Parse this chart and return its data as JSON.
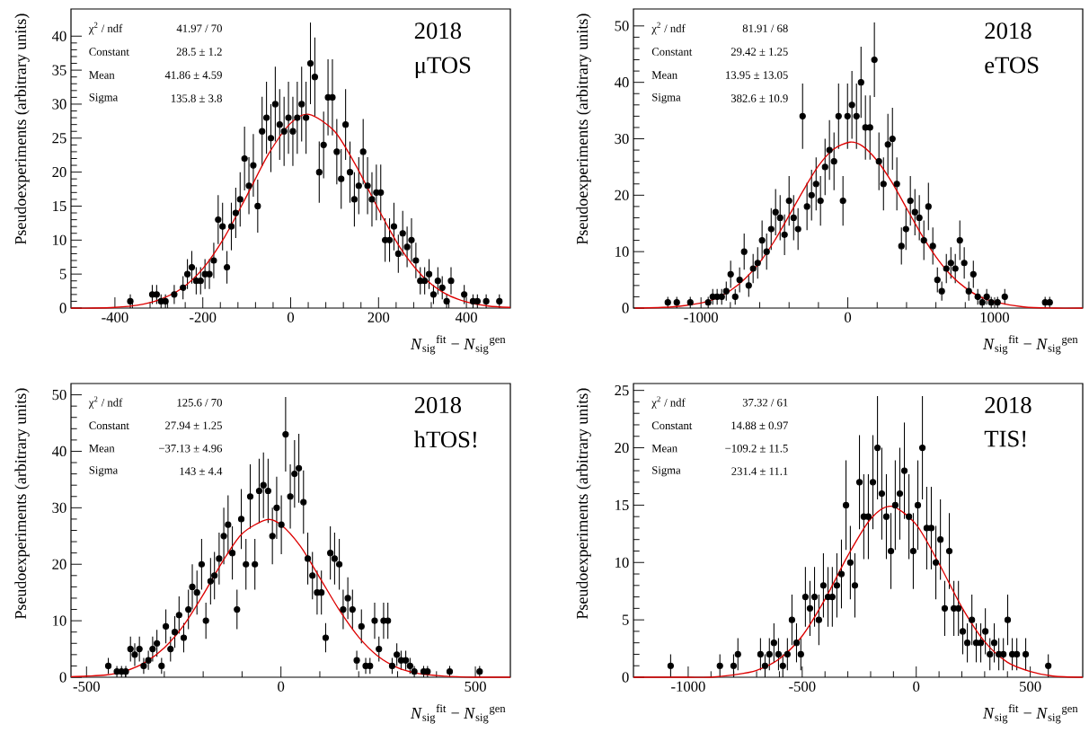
{
  "chart_data": [
    {
      "type": "scatter",
      "xlabel": "*N*$_{sig}$$^{fit}$ − *N*$_{sig}$$^{gen}$",
      "ylabel": "Pseudoexperiments (arbitrary units)",
      "xlim": [
        -500,
        500
      ],
      "ylim": [
        0,
        44
      ],
      "xticks": [
        -400,
        -200,
        0,
        200,
        400
      ],
      "yticks": [
        0,
        5,
        10,
        15,
        20,
        25,
        30,
        35,
        40
      ],
      "annotations": [
        "χ$^{2}$ / ndf",
        "41.97 / 70",
        "Constant",
        "28.5 ± 1.2",
        "Mean",
        "41.86 ± 4.59",
        "Sigma",
        "135.8 ± 3.8",
        "2018",
        "μTOS"
      ],
      "series": [
        {
          "marker": "circle",
          "color": "#000000",
          "x": [
            -365,
            -315,
            -305,
            -295,
            -285,
            -265,
            -245,
            -235,
            -225,
            -215,
            -205,
            -195,
            -185,
            -175,
            -165,
            -155,
            -145,
            -135,
            -125,
            -115,
            -105,
            -95,
            -85,
            -75,
            -65,
            -55,
            -45,
            -35,
            -25,
            -15,
            -5,
            5,
            15,
            25,
            35,
            45,
            55,
            65,
            75,
            85,
            95,
            105,
            115,
            125,
            135,
            145,
            155,
            165,
            175,
            185,
            195,
            205,
            215,
            225,
            235,
            245,
            255,
            265,
            275,
            285,
            295,
            305,
            315,
            325,
            335,
            345,
            355,
            365,
            395,
            415,
            425,
            445,
            475
          ],
          "values": [
            1,
            2,
            2,
            1,
            1,
            2,
            3,
            5,
            6,
            4,
            4,
            5,
            5,
            7,
            13,
            12,
            6,
            12,
            14,
            16,
            22,
            18,
            21,
            15,
            26,
            28,
            25,
            30,
            27,
            26,
            28,
            26,
            28,
            30,
            28,
            36,
            34,
            20,
            24,
            31,
            31,
            23,
            19,
            27,
            20,
            16,
            18,
            23,
            18,
            16,
            17,
            17,
            10,
            10,
            12,
            8,
            11,
            9,
            10,
            7,
            4,
            4,
            5,
            2,
            4,
            3,
            1,
            4,
            2,
            1,
            1,
            1,
            1
          ],
          "errors": [
            1,
            1.4,
            1.4,
            1,
            1,
            1.4,
            1.7,
            2.2,
            2.4,
            2,
            2,
            2.2,
            2.2,
            2.6,
            3.6,
            3.5,
            2.4,
            3.5,
            3.7,
            4,
            4.7,
            4.2,
            4.6,
            3.9,
            5.1,
            5.3,
            5,
            5.5,
            5.2,
            5.1,
            5.3,
            5.1,
            5.3,
            5.5,
            5.3,
            6,
            5.8,
            4.5,
            4.9,
            5.6,
            5.6,
            4.8,
            4.4,
            5.2,
            4.5,
            4,
            4.2,
            4.8,
            4.2,
            4,
            4.1,
            4.1,
            3.2,
            3.2,
            3.5,
            2.8,
            3.3,
            3,
            3.2,
            2.6,
            2,
            2,
            2.2,
            1.4,
            2,
            1.7,
            1,
            2,
            1.4,
            1,
            1,
            1,
            1
          ]
        },
        {
          "type": "line",
          "marker": "none",
          "color": "#dd0000",
          "x": [
            -500,
            -450,
            -400,
            -350,
            -300,
            -250,
            -200,
            -150,
            -100,
            -50,
            0,
            41.86,
            100,
            150,
            200,
            250,
            300,
            350,
            400,
            450,
            500
          ],
          "values": [
            0,
            0,
            0.1,
            0.4,
            1.2,
            2.8,
            5.8,
            10.5,
            16.5,
            22.7,
            27.2,
            28.5,
            26,
            20.8,
            14.5,
            8.8,
            4.7,
            2.2,
            0.9,
            0.3,
            0.1
          ]
        }
      ]
    },
    {
      "type": "scatter",
      "xlabel": "*N*$_{sig}$$^{fit}$ − *N*$_{sig}$$^{gen}$",
      "ylabel": "Pseudoexperiments (arbitrary units)",
      "xlim": [
        -1460,
        1600
      ],
      "ylim": [
        0,
        53
      ],
      "xticks": [
        -1000,
        0,
        1000
      ],
      "yticks": [
        0,
        10,
        20,
        30,
        40,
        50
      ],
      "annotations": [
        "χ$^{2}$ / ndf",
        "81.91 / 68",
        "Constant",
        "29.42 ± 1.25",
        "Mean",
        "13.95 ± 13.05",
        "Sigma",
        "382.6 ± 10.9",
        "2018",
        "eTOS"
      ],
      "series": [
        {
          "marker": "circle",
          "color": "#000000",
          "x": [
            -1226,
            -1165,
            -1073,
            -951,
            -920,
            -890,
            -859,
            -828,
            -798,
            -767,
            -737,
            -706,
            -675,
            -645,
            -614,
            -584,
            -553,
            -522,
            -492,
            -461,
            -431,
            -400,
            -369,
            -339,
            -308,
            -278,
            -247,
            -216,
            -186,
            -155,
            -125,
            -94,
            -63,
            -33,
            -2,
            28,
            59,
            90,
            120,
            151,
            181,
            212,
            243,
            273,
            304,
            334,
            365,
            396,
            426,
            457,
            487,
            518,
            549,
            579,
            610,
            640,
            671,
            702,
            732,
            763,
            793,
            824,
            855,
            885,
            916,
            946,
            977,
            1020,
            1069,
            1344,
            1375
          ],
          "values": [
            1,
            1,
            1,
            1,
            2,
            2,
            2,
            3,
            6,
            2,
            5,
            10,
            4,
            7,
            8,
            12,
            10,
            14,
            17,
            16,
            13,
            19,
            16,
            14,
            34,
            18,
            20,
            22,
            19,
            25,
            28,
            26,
            34,
            19,
            34,
            36,
            34,
            40,
            32,
            32,
            44,
            26,
            22,
            29,
            30,
            22,
            11,
            14,
            19,
            17,
            16,
            12,
            18,
            11,
            5,
            3,
            7,
            8,
            7,
            12,
            8,
            3,
            6,
            2,
            1,
            2,
            1,
            1,
            2,
            1,
            1
          ],
          "errors": [
            1,
            1,
            1,
            1,
            1.4,
            1.4,
            1.4,
            1.7,
            2.4,
            1.4,
            2.2,
            3.2,
            2,
            2.6,
            2.8,
            3.5,
            3.2,
            3.7,
            4.1,
            4,
            3.6,
            4.4,
            4,
            3.7,
            5.8,
            4.2,
            4.5,
            4.7,
            4.4,
            5,
            5.3,
            5.1,
            5.8,
            4.4,
            5.8,
            6,
            5.8,
            6.3,
            5.7,
            5.7,
            6.6,
            5.1,
            4.7,
            5.4,
            5.5,
            4.7,
            3.3,
            3.7,
            4.4,
            4.1,
            4,
            3.5,
            4.2,
            3.3,
            2.2,
            1.7,
            2.6,
            2.8,
            2.6,
            3.5,
            2.8,
            1.7,
            2.4,
            1.4,
            1,
            1.4,
            1,
            1,
            1.4,
            1,
            1
          ]
        },
        {
          "type": "line",
          "marker": "none",
          "color": "#dd0000",
          "x": [
            -1450,
            -1200,
            -1000,
            -900,
            -800,
            -700,
            -600,
            -500,
            -400,
            -300,
            -200,
            -100,
            13.95,
            100,
            200,
            300,
            400,
            500,
            600,
            700,
            800,
            900,
            1000,
            1200,
            1400,
            1600
          ],
          "values": [
            0,
            0.2,
            0.9,
            1.7,
            3.1,
            5.2,
            8.1,
            11.9,
            16.4,
            21,
            25.2,
            28.1,
            29.4,
            28.7,
            26.1,
            22.3,
            17.7,
            13.1,
            9.1,
            5.9,
            3.6,
            2,
            1.1,
            0.2,
            0,
            0
          ]
        }
      ]
    },
    {
      "type": "scatter",
      "xlabel": "*N*$_{sig}$$^{fit}$ − *N*$_{sig}$$^{gen}$",
      "ylabel": "Pseudoexperiments (arbitrary units)",
      "xlim": [
        -540,
        590
      ],
      "ylim": [
        0,
        52
      ],
      "xticks": [
        -500,
        0,
        500
      ],
      "yticks": [
        0,
        10,
        20,
        30,
        40,
        50
      ],
      "annotations": [
        "χ$^{2}$ / ndf",
        "125.6 / 70",
        "Constant",
        "27.94 ± 1.25",
        "Mean",
        "−37.13 ± 4.96",
        "Sigma",
        "143 ± 4.4",
        "2018",
        "hTOS!"
      ],
      "series": [
        {
          "marker": "circle",
          "color": "#000000",
          "x": [
            -444,
            -422,
            -410,
            -399,
            -387,
            -376,
            -364,
            -353,
            -341,
            -330,
            -319,
            -307,
            -296,
            -284,
            -273,
            -262,
            -250,
            -238,
            -228,
            -216,
            -204,
            -193,
            -181,
            -171,
            -159,
            -147,
            -136,
            -125,
            -113,
            -102,
            -90,
            -79,
            -67,
            -56,
            -45,
            -33,
            -22,
            -11,
            1,
            12,
            24,
            35,
            46,
            58,
            69,
            81,
            93,
            104,
            115,
            127,
            138,
            150,
            160,
            172,
            184,
            195,
            207,
            218,
            229,
            241,
            252,
            264,
            275,
            286,
            298,
            309,
            321,
            332,
            343,
            367,
            377,
            434,
            511
          ],
          "values": [
            2,
            1,
            1,
            1,
            5,
            4,
            5,
            2,
            3,
            5,
            6,
            2,
            9,
            5,
            8,
            11,
            7,
            12,
            16,
            15,
            20,
            10,
            17,
            18,
            21,
            25,
            27,
            22,
            12,
            28,
            20,
            32,
            20,
            33,
            34,
            33,
            25,
            30,
            27,
            43,
            32,
            36,
            37,
            31,
            21,
            18,
            15,
            15,
            7,
            22,
            21,
            20,
            12,
            14,
            12,
            3,
            9,
            2,
            2,
            10,
            5,
            10,
            10,
            2,
            4,
            3,
            3,
            2,
            1,
            1,
            1,
            1,
            1
          ],
          "errors": [
            1.4,
            1,
            1,
            1,
            2.2,
            2,
            2.2,
            1.4,
            1.7,
            2.2,
            2.4,
            1.4,
            3,
            2.2,
            2.8,
            3.3,
            2.6,
            3.5,
            4,
            3.9,
            4.5,
            3.2,
            4.1,
            4.2,
            4.6,
            5,
            5.2,
            4.7,
            3.5,
            5.3,
            4.5,
            5.7,
            4.5,
            5.7,
            5.8,
            5.7,
            5,
            5.5,
            5.2,
            6.6,
            5.7,
            6,
            6.1,
            5.6,
            4.6,
            4.2,
            3.9,
            3.9,
            2.6,
            4.7,
            4.6,
            4.5,
            3.5,
            3.7,
            3.5,
            1.7,
            3,
            1.4,
            1.4,
            3.2,
            2.2,
            3.2,
            3.2,
            1.4,
            2,
            1.7,
            1.7,
            1.4,
            1,
            1,
            1,
            1,
            1
          ]
        },
        {
          "type": "line",
          "marker": "none",
          "color": "#dd0000",
          "x": [
            -540,
            -500,
            -450,
            -400,
            -350,
            -300,
            -250,
            -200,
            -150,
            -100,
            -37.13,
            0,
            50,
            100,
            150,
            200,
            250,
            300,
            350,
            400,
            450,
            500,
            590
          ],
          "values": [
            0.1,
            0.2,
            0.4,
            1.1,
            2.6,
            5.2,
            9.2,
            14.6,
            20.5,
            25.4,
            27.9,
            27,
            23.2,
            17.6,
            11.9,
            7.1,
            3.7,
            1.7,
            0.7,
            0.3,
            0.1,
            0,
            0
          ]
        }
      ]
    },
    {
      "type": "scatter",
      "xlabel": "*N*$_{sig}$$^{fit}$ − *N*$_{sig}$$^{gen}$",
      "ylabel": "Pseudoexperiments (arbitrary units)",
      "xlim": [
        -1240,
        730
      ],
      "ylim": [
        0,
        25.6
      ],
      "xticks": [
        -1000,
        -500,
        0,
        500
      ],
      "yticks": [
        0,
        5,
        10,
        15,
        20,
        25
      ],
      "annotations": [
        "χ$^{2}$ / ndf",
        "37.32 / 61",
        "Constant",
        "14.88 ± 0.97",
        "Mean",
        "−109.2 ± 11.5",
        "Sigma",
        "231.4 ± 11.1",
        "2018",
        "TIS!"
      ],
      "series": [
        {
          "marker": "circle",
          "color": "#000000",
          "x": [
            -1077,
            -861,
            -801,
            -782,
            -683,
            -663,
            -644,
            -624,
            -604,
            -585,
            -565,
            -545,
            -525,
            -506,
            -486,
            -466,
            -446,
            -427,
            -407,
            -387,
            -368,
            -348,
            -328,
            -308,
            -289,
            -269,
            -249,
            -230,
            -210,
            -190,
            -170,
            -151,
            -131,
            -111,
            -92,
            -72,
            -52,
            -32,
            -13,
            7,
            27,
            46,
            66,
            86,
            106,
            125,
            145,
            165,
            185,
            204,
            224,
            244,
            263,
            283,
            303,
            323,
            342,
            362,
            382,
            401,
            421,
            441,
            480,
            579
          ],
          "values": [
            1,
            1,
            1,
            2,
            2,
            1,
            2,
            3,
            2,
            1,
            2,
            5,
            3,
            2,
            7,
            6,
            7,
            5,
            8,
            7,
            7,
            8,
            9,
            15,
            10,
            8,
            17,
            14,
            14,
            17,
            20,
            16,
            14,
            11,
            15,
            16,
            18,
            14,
            11,
            15,
            20,
            13,
            13,
            10,
            12,
            6,
            11,
            6,
            6,
            4,
            3,
            5,
            3,
            3,
            4,
            2,
            3,
            2,
            2,
            5,
            2,
            2,
            2,
            1
          ],
          "errors": [
            1,
            1,
            1,
            1.4,
            1.4,
            1,
            1.4,
            1.7,
            1.4,
            1,
            1.4,
            2.2,
            1.7,
            1.4,
            2.6,
            2.4,
            2.6,
            2.2,
            2.8,
            2.6,
            2.6,
            2.8,
            3,
            3.9,
            3.2,
            2.8,
            4.1,
            3.7,
            3.7,
            4.1,
            4.5,
            4,
            3.7,
            3.3,
            3.9,
            4,
            4.2,
            3.7,
            3.3,
            3.9,
            4.5,
            3.6,
            3.6,
            3.2,
            3.5,
            2.4,
            3.3,
            2.4,
            2.4,
            2,
            1.7,
            2.2,
            1.7,
            1.7,
            2,
            1.4,
            1.7,
            1.4,
            1.4,
            2.2,
            1.4,
            1.4,
            1.4,
            1
          ]
        },
        {
          "type": "line",
          "marker": "none",
          "color": "#dd0000",
          "x": [
            -1240,
            -1100,
            -1000,
            -900,
            -800,
            -700,
            -600,
            -500,
            -400,
            -300,
            -200,
            -109.2,
            0,
            100,
            200,
            300,
            400,
            500,
            600,
            730
          ],
          "values": [
            0,
            0,
            0,
            0,
            0.2,
            0.6,
            1.6,
            3.6,
            6.8,
            10.6,
            13.8,
            14.9,
            13.3,
            9.9,
            6.1,
            3.1,
            1.3,
            0.5,
            0.1,
            0
          ]
        }
      ]
    }
  ]
}
